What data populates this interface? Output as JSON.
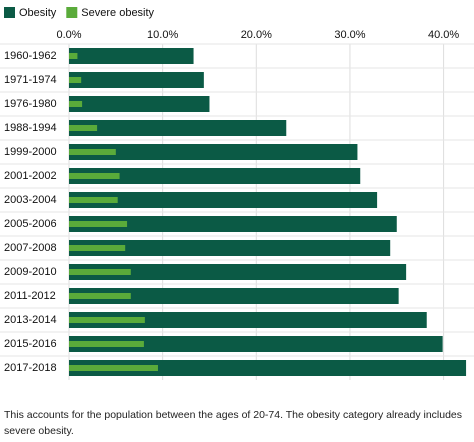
{
  "chart_data": {
    "type": "bar",
    "orientation": "horizontal",
    "categories": [
      "1960-1962",
      "1971-1974",
      "1976-1980",
      "1988-1994",
      "1999-2000",
      "2001-2002",
      "2003-2004",
      "2005-2006",
      "2007-2008",
      "2009-2010",
      "2011-2012",
      "2013-2014",
      "2015-2016",
      "2017-2018"
    ],
    "series": [
      {
        "name": "Obesity",
        "color": "#0b5a45",
        "values": [
          13.3,
          14.4,
          15.0,
          23.2,
          30.8,
          31.1,
          32.9,
          35.0,
          34.3,
          36.0,
          35.2,
          38.2,
          39.9,
          42.4
        ]
      },
      {
        "name": "Severe obesity",
        "color": "#5aab3a",
        "values": [
          0.9,
          1.3,
          1.4,
          3.0,
          5.0,
          5.4,
          5.2,
          6.2,
          6.0,
          6.6,
          6.6,
          8.1,
          8.0,
          9.5
        ]
      }
    ],
    "xlim": [
      0,
      42.5
    ],
    "xticks": [
      {
        "value": 0,
        "label": "0.0%"
      },
      {
        "value": 10,
        "label": "10.0%"
      },
      {
        "value": 20,
        "label": "20.0%"
      },
      {
        "value": 30,
        "label": "30.0%"
      },
      {
        "value": 40,
        "label": "40.0%"
      }
    ],
    "grid": true,
    "legend": "top-left",
    "note": "This accounts for the population between the ages of 20-74. The obesity category already includes severe obesity."
  }
}
